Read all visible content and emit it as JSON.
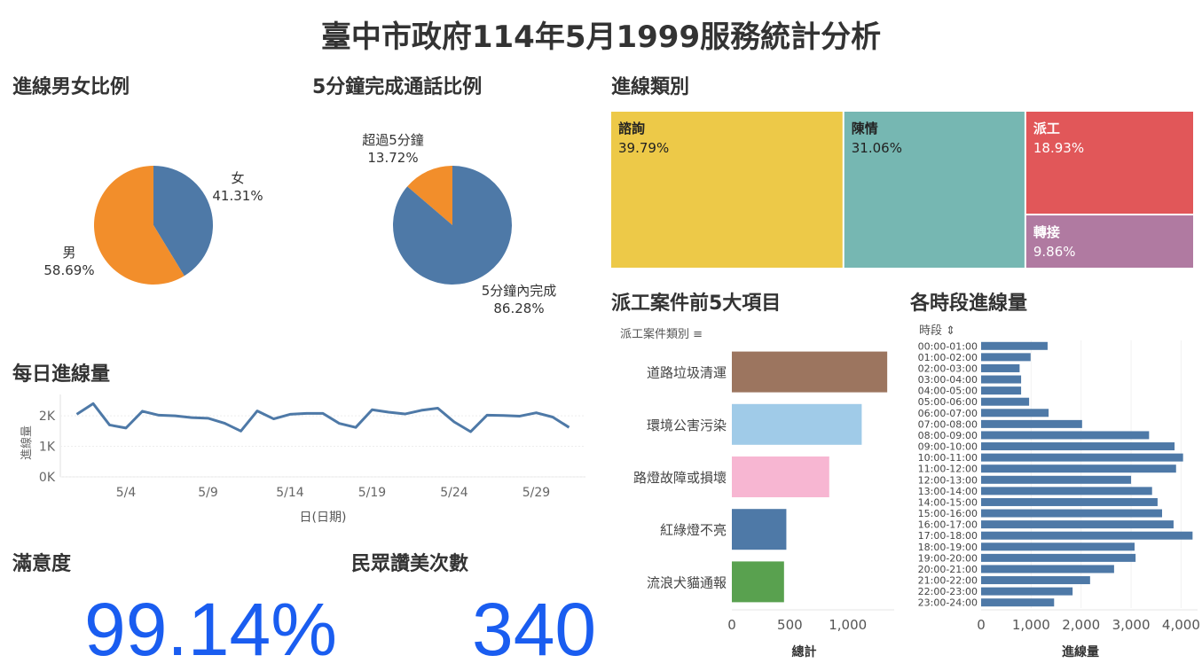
{
  "title": "臺中市政府114年5月1999服務統計分析",
  "colors": {
    "blue": "#4e79a7",
    "orange": "#f28e2b",
    "kpi": "#1a5df0"
  },
  "gender": {
    "title": "進線男女比例",
    "chart_data": {
      "type": "pie",
      "slices": [
        {
          "name": "女",
          "value": 41.31,
          "label": "41.31%",
          "color": "#4e79a7"
        },
        {
          "name": "男",
          "value": 58.69,
          "label": "58.69%",
          "color": "#f28e2b"
        }
      ]
    }
  },
  "duration": {
    "title": "5分鐘完成通話比例",
    "chart_data": {
      "type": "pie",
      "slices": [
        {
          "name": "超過5分鐘",
          "value": 13.72,
          "label": "13.72%",
          "color": "#f28e2b"
        },
        {
          "name": "5分鐘內完成",
          "value": 86.28,
          "label": "86.28%",
          "color": "#4e79a7"
        }
      ]
    }
  },
  "category": {
    "title": "進線類別",
    "chart_data": {
      "type": "treemap",
      "items": [
        {
          "name": "諮詢",
          "value": 39.79,
          "label": "39.79%",
          "color": "#edc948"
        },
        {
          "name": "陳情",
          "value": 31.06,
          "label": "31.06%",
          "color": "#76b7b2"
        },
        {
          "name": "派工",
          "value": 18.93,
          "label": "18.93%",
          "color": "#e15759"
        },
        {
          "name": "轉接",
          "value": 9.86,
          "label": "9.86%",
          "color": "#b07aa1"
        }
      ]
    }
  },
  "daily": {
    "title": "每日進線量",
    "chart_data": {
      "type": "line",
      "x": [
        1,
        2,
        3,
        4,
        5,
        6,
        7,
        8,
        9,
        10,
        11,
        12,
        13,
        14,
        15,
        16,
        17,
        18,
        19,
        20,
        21,
        22,
        23,
        24,
        25,
        26,
        27,
        28,
        29,
        30,
        31
      ],
      "values": [
        2050,
        2400,
        1700,
        1600,
        2150,
        2020,
        2000,
        1940,
        1920,
        1760,
        1500,
        2160,
        1900,
        2050,
        2080,
        2080,
        1750,
        1620,
        2200,
        2120,
        2060,
        2180,
        2250,
        1800,
        1480,
        2020,
        2010,
        1990,
        2100,
        1960,
        1620
      ],
      "ylabel": "進線量",
      "xlabel": "日(日期)",
      "yticks": [
        0,
        1000,
        2000
      ],
      "ytick_labels": [
        "0K",
        "1K",
        "2K"
      ],
      "xticks": [
        4,
        9,
        14,
        19,
        24,
        29
      ],
      "xtick_labels": [
        "5/4",
        "5/9",
        "5/14",
        "5/19",
        "5/24",
        "5/29"
      ],
      "ylim": [
        0,
        2700
      ]
    }
  },
  "dispatch": {
    "title": "派工案件前5大項目",
    "col_header": "派工案件類別",
    "chart_data": {
      "type": "bar",
      "categories": [
        "道路垃圾清運",
        "環境公害污染",
        "路燈故障或損壞",
        "紅綠燈不亮",
        "流浪犬貓通報"
      ],
      "values": [
        1340,
        1120,
        840,
        470,
        450
      ],
      "colors": [
        "#9c755f",
        "#a0cbe8",
        "#f7b6d2",
        "#4e79a7",
        "#59a14f"
      ],
      "xlabel": "總計",
      "xticks": [
        0,
        500,
        1000
      ],
      "xtick_labels": [
        "0",
        "500",
        "1,000"
      ],
      "xlim": [
        0,
        1400
      ]
    }
  },
  "hourly": {
    "title": "各時段進線量",
    "col_header": "時段",
    "chart_data": {
      "type": "bar",
      "categories": [
        "00:00-01:00",
        "01:00-02:00",
        "02:00-03:00",
        "03:00-04:00",
        "04:00-05:00",
        "05:00-06:00",
        "06:00-07:00",
        "07:00-08:00",
        "08:00-09:00",
        "09:00-10:00",
        "10:00-11:00",
        "11:00-12:00",
        "12:00-13:00",
        "13:00-14:00",
        "14:00-15:00",
        "15:00-16:00",
        "16:00-17:00",
        "17:00-18:00",
        "18:00-19:00",
        "19:00-20:00",
        "20:00-21:00",
        "21:00-22:00",
        "22:00-23:00",
        "23:00-24:00"
      ],
      "values": [
        1330,
        990,
        770,
        800,
        800,
        960,
        1350,
        2020,
        3360,
        3870,
        4040,
        3900,
        3000,
        3420,
        3530,
        3620,
        3850,
        4230,
        3070,
        3090,
        2660,
        2180,
        1830,
        1460
      ],
      "xlabel": "進線量",
      "xticks": [
        0,
        1000,
        2000,
        3000,
        4000
      ],
      "xtick_labels": [
        "0",
        "1,000",
        "2,000",
        "3,000",
        "4,000"
      ],
      "xlim": [
        0,
        4330
      ]
    }
  },
  "satisfaction": {
    "title": "滿意度",
    "value": "99.14%"
  },
  "praise": {
    "title": "民眾讚美次數",
    "value": "340"
  }
}
